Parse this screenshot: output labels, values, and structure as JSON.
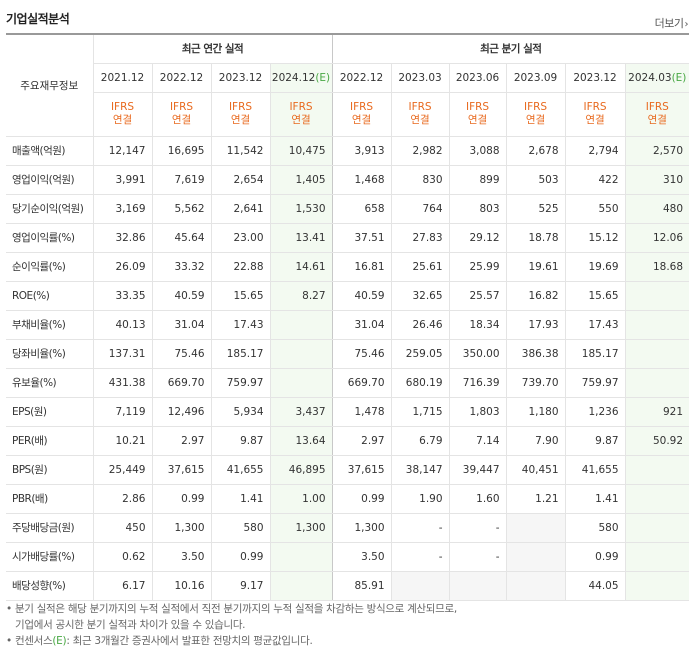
{
  "title": "기업실적분석",
  "more_label": "더보기",
  "row_header": "주요재무정보",
  "groups": {
    "annual": "최근 연간 실적",
    "quarterly": "최근 분기 실적"
  },
  "periods": [
    "2021.12",
    "2022.12",
    "2023.12",
    "2024.12",
    "2022.12",
    "2023.03",
    "2023.06",
    "2023.09",
    "2023.12",
    "2024.03"
  ],
  "estimate_mark": "(E)",
  "ifrs_line1": "IFRS",
  "ifrs_line2": "연결",
  "rows": [
    {
      "label": "매출액(억원)",
      "values": [
        "12,147",
        "16,695",
        "11,542",
        "10,475",
        "3,913",
        "2,982",
        "3,088",
        "2,678",
        "2,794",
        "2,570"
      ]
    },
    {
      "label": "영업이익(억원)",
      "values": [
        "3,991",
        "7,619",
        "2,654",
        "1,405",
        "1,468",
        "830",
        "899",
        "503",
        "422",
        "310"
      ]
    },
    {
      "label": "당기순이익(억원)",
      "values": [
        "3,169",
        "5,562",
        "2,641",
        "1,530",
        "658",
        "764",
        "803",
        "525",
        "550",
        "480"
      ]
    },
    {
      "label": "영업이익률(%)",
      "values": [
        "32.86",
        "45.64",
        "23.00",
        "13.41",
        "37.51",
        "27.83",
        "29.12",
        "18.78",
        "15.12",
        "12.06"
      ]
    },
    {
      "label": "순이익률(%)",
      "values": [
        "26.09",
        "33.32",
        "22.88",
        "14.61",
        "16.81",
        "25.61",
        "25.99",
        "19.61",
        "19.69",
        "18.68"
      ]
    },
    {
      "label": "ROE(%)",
      "values": [
        "33.35",
        "40.59",
        "15.65",
        "8.27",
        "40.59",
        "32.65",
        "25.57",
        "16.82",
        "15.65",
        ""
      ]
    },
    {
      "label": "부채비율(%)",
      "values": [
        "40.13",
        "31.04",
        "17.43",
        "",
        "31.04",
        "26.46",
        "18.34",
        "17.93",
        "17.43",
        ""
      ]
    },
    {
      "label": "당좌비율(%)",
      "values": [
        "137.31",
        "75.46",
        "185.17",
        "",
        "75.46",
        "259.05",
        "350.00",
        "386.38",
        "185.17",
        ""
      ]
    },
    {
      "label": "유보율(%)",
      "values": [
        "431.38",
        "669.70",
        "759.97",
        "",
        "669.70",
        "680.19",
        "716.39",
        "739.70",
        "759.97",
        ""
      ]
    },
    {
      "label": "EPS(원)",
      "values": [
        "7,119",
        "12,496",
        "5,934",
        "3,437",
        "1,478",
        "1,715",
        "1,803",
        "1,180",
        "1,236",
        "921"
      ]
    },
    {
      "label": "PER(배)",
      "values": [
        "10.21",
        "2.97",
        "9.87",
        "13.64",
        "2.97",
        "6.79",
        "7.14",
        "7.90",
        "9.87",
        "50.92"
      ]
    },
    {
      "label": "BPS(원)",
      "values": [
        "25,449",
        "37,615",
        "41,655",
        "46,895",
        "37,615",
        "38,147",
        "39,447",
        "40,451",
        "41,655",
        ""
      ]
    },
    {
      "label": "PBR(배)",
      "values": [
        "2.86",
        "0.99",
        "1.41",
        "1.00",
        "0.99",
        "1.90",
        "1.60",
        "1.21",
        "1.41",
        ""
      ]
    },
    {
      "label": "주당배당금(원)",
      "values": [
        "450",
        "1,300",
        "580",
        "1,300",
        "1,300",
        "-",
        "-",
        "",
        "580",
        ""
      ]
    },
    {
      "label": "시가배당률(%)",
      "values": [
        "0.62",
        "3.50",
        "0.99",
        "",
        "3.50",
        "-",
        "-",
        "",
        "0.99",
        ""
      ]
    },
    {
      "label": "배당성향(%)",
      "values": [
        "6.17",
        "10.16",
        "9.17",
        "",
        "85.91",
        "",
        "",
        "",
        "44.05",
        ""
      ]
    }
  ],
  "notes": {
    "line1": "분기 실적은 해당 분기까지의 누적 실적에서 직전 분기까지의 누적 실적을 차감하는 방식으로 계산되므로,",
    "line2": "기업에서 공시한 분기 실적과 차이가 있을 수 있습니다.",
    "line3_prefix": "컨센서스",
    "line3_mark": "(E)",
    "line3_suffix": ": 최근 3개월간 증권사에서 발표한 전망치의 평균값입니다."
  }
}
